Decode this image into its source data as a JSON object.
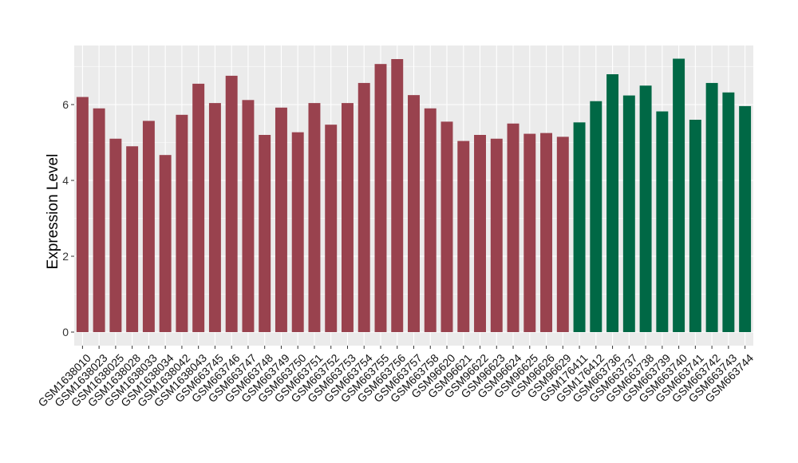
{
  "chart_data": {
    "type": "bar",
    "title": "",
    "xlabel": "",
    "ylabel": "Expression Level",
    "ylim": [
      0,
      7.5
    ],
    "yticks": [
      0,
      2,
      4,
      6
    ],
    "grid": true,
    "legend": "none",
    "panel_background": "#ebebeb",
    "grid_color": "#ffffff",
    "categories": [
      "GSM1638010",
      "GSM1638023",
      "GSM1638025",
      "GSM1638028",
      "GSM1638033",
      "GSM1638034",
      "GSM1638042",
      "GSM1638043",
      "GSM663745",
      "GSM663746",
      "GSM663747",
      "GSM663748",
      "GSM663749",
      "GSM663750",
      "GSM663751",
      "GSM663752",
      "GSM663753",
      "GSM663754",
      "GSM663755",
      "GSM663756",
      "GSM663757",
      "GSM663758",
      "GSM96620",
      "GSM96621",
      "GSM96622",
      "GSM96623",
      "GSM96624",
      "GSM96625",
      "GSM96626",
      "GSM96629",
      "GSM176411",
      "GSM176412",
      "GSM663736",
      "GSM663737",
      "GSM663738",
      "GSM663739",
      "GSM663740",
      "GSM663741",
      "GSM663742",
      "GSM663743",
      "GSM663744"
    ],
    "values": [
      6.2,
      5.9,
      5.1,
      4.9,
      5.57,
      4.67,
      5.73,
      6.55,
      6.04,
      6.76,
      6.12,
      5.2,
      5.92,
      5.27,
      6.04,
      5.47,
      6.04,
      6.57,
      7.07,
      7.2,
      6.25,
      5.9,
      5.55,
      5.04,
      5.2,
      5.1,
      5.5,
      5.23,
      5.25,
      5.15,
      5.53,
      6.09,
      6.8,
      6.24,
      6.5,
      5.82,
      7.21,
      5.6,
      6.57,
      6.32,
      5.96
    ],
    "colors": [
      "#99424e",
      "#99424e",
      "#99424e",
      "#99424e",
      "#99424e",
      "#99424e",
      "#99424e",
      "#99424e",
      "#99424e",
      "#99424e",
      "#99424e",
      "#99424e",
      "#99424e",
      "#99424e",
      "#99424e",
      "#99424e",
      "#99424e",
      "#99424e",
      "#99424e",
      "#99424e",
      "#99424e",
      "#99424e",
      "#99424e",
      "#99424e",
      "#99424e",
      "#99424e",
      "#99424e",
      "#99424e",
      "#99424e",
      "#99424e",
      "#006845",
      "#006845",
      "#006845",
      "#006845",
      "#006845",
      "#006845",
      "#006845",
      "#006845",
      "#006845",
      "#006845",
      "#006845"
    ]
  }
}
